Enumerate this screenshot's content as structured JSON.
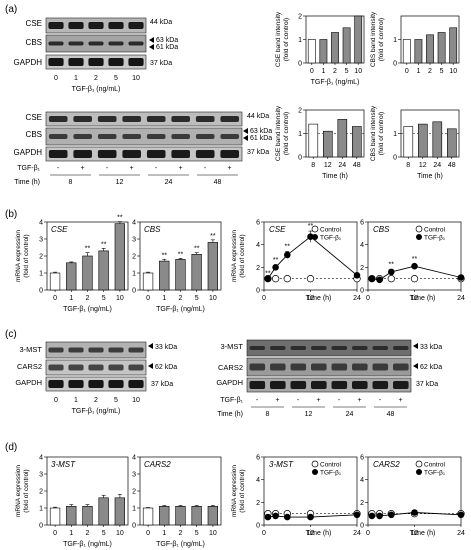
{
  "panels": {
    "a": "(a)",
    "b": "(b)",
    "c": "(c)",
    "d": "(d)"
  },
  "conc_ticks": [
    "0",
    "1",
    "2",
    "5",
    "10"
  ],
  "time_ticks": [
    "8",
    "12",
    "24",
    "48"
  ],
  "plus_minus": [
    "-",
    "+",
    "-",
    "+",
    "-",
    "+",
    "-",
    "+"
  ],
  "tgf_conc_label": "TGF-β₁  (ng/mL)",
  "tgf_row_label": "TGF-β₁",
  "time_row_label": "Time (h)",
  "time_label": "Time  (h)",
  "blot_a1": {
    "labels": [
      "CSE",
      "CBS",
      "GAPDH"
    ],
    "kda": [
      "44 kDa",
      "63 kDa",
      "61 kDa",
      "37 kDa"
    ]
  },
  "blot_a2": {
    "labels": [
      "CSE",
      "CBS",
      "GAPDH"
    ],
    "kda": [
      "44 kDa",
      "63 kDa",
      "61 kDa",
      "37 kDa"
    ]
  },
  "blot_c1": {
    "labels": [
      "3-MST",
      "CARS2",
      "GAPDH"
    ],
    "kda": [
      "33 kDa",
      "62 kDa",
      "37 kDa"
    ]
  },
  "blot_c2": {
    "labels": [
      "3-MST",
      "CARS2",
      "GAPDH"
    ],
    "kda": [
      "33 kDa",
      "62 kDa",
      "37 kDa"
    ]
  },
  "ylabels": {
    "cse_band": [
      "CSE band intensity",
      "(fold of control)"
    ],
    "cbs_band": [
      "CBS band intensity",
      "(fold of control)"
    ],
    "mrna": [
      "mRNA expression",
      "(fold of control)"
    ]
  },
  "legend": {
    "control": "Control",
    "tgf": "TGF-β₁"
  },
  "significance": "**",
  "colors": {
    "gray_bar": "#8a8a8a",
    "white_bar": "#ffffff",
    "line": "#000000"
  },
  "chart_data": [
    {
      "id": "a_cse_conc",
      "type": "bar",
      "ylabel": "CSE band intensity (fold of control)",
      "xlabel": "TGF-β₁ (ng/mL)",
      "categories": [
        "0",
        "1",
        "2",
        "5",
        "10"
      ],
      "values": [
        1.0,
        1.0,
        1.3,
        1.5,
        2.2
      ],
      "ylim": [
        0,
        2
      ],
      "yticks": [
        0,
        1,
        2
      ]
    },
    {
      "id": "a_cbs_conc",
      "type": "bar",
      "ylabel": "CBS band intensity (fold of control)",
      "xlabel": "TGF-β₁ (ng/mL)",
      "categories": [
        "0",
        "1",
        "2",
        "5",
        "10"
      ],
      "values": [
        1.0,
        1.0,
        1.2,
        1.3,
        1.5
      ],
      "ylim": [
        0,
        2
      ],
      "yticks": [
        0,
        1
      ]
    },
    {
      "id": "a_cse_time",
      "type": "bar",
      "ylabel": "CSE band intensity (fold of control)",
      "xlabel": "Time (h)",
      "categories": [
        "8",
        "12",
        "24",
        "48"
      ],
      "values": [
        1.4,
        1.1,
        1.6,
        1.3
      ],
      "ylim": [
        0,
        2
      ],
      "yticks": [
        0,
        1,
        2
      ],
      "reference": 1
    },
    {
      "id": "a_cbs_time",
      "type": "bar",
      "ylabel": "CBS band intensity (fold of control)",
      "xlabel": "Time (h)",
      "categories": [
        "8",
        "12",
        "24",
        "48"
      ],
      "values": [
        1.3,
        1.4,
        1.5,
        1.2
      ],
      "ylim": [
        0,
        2
      ],
      "yticks": [
        0,
        1
      ],
      "reference": 1
    },
    {
      "id": "b_cse_conc",
      "type": "bar",
      "title": "CSE",
      "ylabel": "mRNA expression (fold of control)",
      "xlabel": "TGF-β₁ (ng/mL)",
      "categories": [
        "0",
        "1",
        "2",
        "5",
        "10"
      ],
      "values": [
        1.0,
        1.6,
        2.0,
        2.3,
        3.9
      ],
      "errors": [
        0.05,
        0.05,
        0.2,
        0.15,
        0.12
      ],
      "significance": [
        "",
        "",
        "**",
        "**",
        "**"
      ],
      "ylim": [
        0,
        4
      ],
      "yticks": [
        0,
        1,
        2,
        3,
        4
      ]
    },
    {
      "id": "b_cbs_conc",
      "type": "bar",
      "title": "CBS",
      "xlabel": "TGF-β₁ (ng/mL)",
      "categories": [
        "0",
        "1",
        "2",
        "5",
        "10"
      ],
      "values": [
        1.0,
        1.7,
        1.8,
        2.1,
        2.8
      ],
      "errors": [
        0.05,
        0.1,
        0.06,
        0.1,
        0.15
      ],
      "significance": [
        "",
        "**",
        "**",
        "**",
        "**"
      ],
      "ylim": [
        0,
        4
      ],
      "yticks": [
        0,
        1,
        2,
        3,
        4
      ]
    },
    {
      "id": "b_cse_time",
      "type": "line",
      "title": "CSE",
      "ylabel": "mRNA expression (fold of control)",
      "xlabel": "Time (h)",
      "x": [
        1,
        3,
        6,
        12,
        24
      ],
      "xticks": [
        0,
        12,
        24
      ],
      "ylim": [
        0,
        6
      ],
      "yticks": [
        0,
        2,
        4,
        6
      ],
      "series": [
        {
          "name": "Control",
          "values": [
            1.0,
            1.0,
            1.0,
            1.0,
            1.0
          ]
        },
        {
          "name": "TGF-β₁",
          "values": [
            1.0,
            2.0,
            3.1,
            4.7,
            1.3
          ],
          "errors": [
            0,
            0.2,
            0.3,
            0.5,
            0.1
          ],
          "significance": [
            "**",
            "**",
            "**",
            "**",
            ""
          ]
        }
      ]
    },
    {
      "id": "b_cbs_time",
      "type": "line",
      "title": "CBS",
      "xlabel": "Time (h)",
      "x": [
        1,
        3,
        6,
        12,
        24
      ],
      "xticks": [
        0,
        12,
        24
      ],
      "ylim": [
        0,
        6
      ],
      "yticks": [
        0,
        2,
        4,
        6
      ],
      "series": [
        {
          "name": "Control",
          "values": [
            1.0,
            1.0,
            1.0,
            1.0,
            1.0
          ]
        },
        {
          "name": "TGF-β₁",
          "values": [
            1.0,
            0.9,
            1.6,
            2.1,
            1.1
          ],
          "errors": [
            0,
            0,
            0.2,
            0.2,
            0
          ],
          "significance": [
            "",
            "",
            "**",
            "**",
            ""
          ]
        }
      ]
    },
    {
      "id": "d_3mst_conc",
      "type": "bar",
      "title": "3-MST",
      "ylabel": "mRNA expression (fold of control)",
      "xlabel": "TGF-β₁ (ng/mL)",
      "categories": [
        "0",
        "1",
        "2",
        "5",
        "10"
      ],
      "values": [
        1.0,
        1.1,
        1.1,
        1.6,
        1.6
      ],
      "errors": [
        0.05,
        0.1,
        0.1,
        0.15,
        0.2
      ],
      "ylim": [
        0,
        4
      ],
      "yticks": [
        0,
        1,
        2,
        3,
        4
      ]
    },
    {
      "id": "d_cars2_conc",
      "type": "bar",
      "title": "CARS2",
      "xlabel": "TGF-β₁ (ng/mL)",
      "categories": [
        "0",
        "1",
        "2",
        "5",
        "10"
      ],
      "values": [
        1.0,
        1.1,
        1.1,
        1.1,
        1.1
      ],
      "errors": [
        0.03,
        0.05,
        0.05,
        0.05,
        0.05
      ],
      "ylim": [
        0,
        4
      ],
      "yticks": [
        0,
        1,
        2,
        3,
        4
      ]
    },
    {
      "id": "d_3mst_time",
      "type": "line",
      "title": "3-MST",
      "ylabel": "mRNA expression (fold of control)",
      "xlabel": "Time (h)",
      "x": [
        1,
        3,
        6,
        12,
        24
      ],
      "xticks": [
        0,
        12,
        24
      ],
      "ylim": [
        0,
        6
      ],
      "yticks": [
        0,
        2,
        4,
        6
      ],
      "series": [
        {
          "name": "Control",
          "values": [
            1.0,
            1.0,
            1.0,
            1.0,
            1.0
          ]
        },
        {
          "name": "TGF-β₁",
          "values": [
            0.7,
            0.8,
            0.7,
            0.7,
            0.9
          ]
        }
      ]
    },
    {
      "id": "d_cars2_time",
      "type": "line",
      "title": "CARS2",
      "xlabel": "Time (h)",
      "x": [
        1,
        3,
        6,
        12,
        24
      ],
      "xticks": [
        0,
        12,
        24
      ],
      "ylim": [
        0,
        6
      ],
      "yticks": [
        0,
        2,
        4,
        6
      ],
      "series": [
        {
          "name": "Control",
          "values": [
            1.0,
            1.0,
            1.0,
            1.0,
            1.0
          ]
        },
        {
          "name": "TGF-β₁",
          "values": [
            0.8,
            0.8,
            0.9,
            1.1,
            0.9
          ]
        }
      ]
    }
  ]
}
